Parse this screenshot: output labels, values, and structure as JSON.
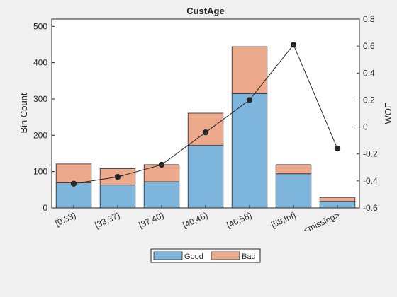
{
  "figure": {
    "background": "#f0f0f0"
  },
  "chart_data": {
    "type": "bar",
    "title": "CustAge",
    "xlabel": "",
    "ylabel": "Bin Count",
    "y2label": "WOE",
    "stacked": true,
    "categories": [
      "[0,33)",
      "[33,37)",
      "[37,40)",
      "[40,46)",
      "[46,58)",
      "[58,Inf]",
      "<missing>"
    ],
    "series": [
      {
        "name": "Good",
        "values": [
          69,
          63,
          72,
          172,
          315,
          94,
          18
        ],
        "color": "#7eb6dd"
      },
      {
        "name": "Bad",
        "values": [
          52,
          45,
          47,
          89,
          129,
          25,
          11
        ],
        "color": "#eca98b"
      }
    ],
    "woe": {
      "values": [
        -0.42,
        -0.37,
        -0.28,
        -0.04,
        0.2,
        0.61,
        -0.16
      ],
      "color": "#262626"
    },
    "ylim": [
      0,
      520
    ],
    "yticks": [
      0,
      100,
      200,
      300,
      400,
      500
    ],
    "y2lim": [
      -0.6,
      0.8
    ],
    "y2ticks": [
      -0.6,
      -0.4,
      -0.2,
      0,
      0.2,
      0.4,
      0.6,
      0.8
    ],
    "y2ticklabels": [
      "-0.6",
      "-0.4",
      "-0.2",
      "0",
      "0.2",
      "0.4",
      "0.6",
      "0.8"
    ],
    "legend": {
      "placement": "bottom",
      "entries": [
        "Good",
        "Bad"
      ]
    },
    "grid": false
  }
}
